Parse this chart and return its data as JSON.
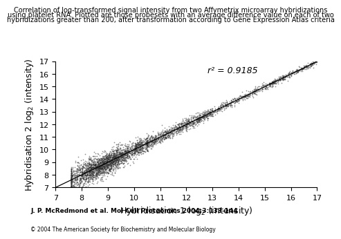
{
  "title_line1": "Correlation of log-transformed signal intensity from two Affymetrix microarray hybridizations",
  "title_line2": "using platelet RNA. Plotted are those probesets with an average difference value on each of two",
  "title_line3": "hybridizations greater than 200, after transformation according to Gene Expression Atlas criteria",
  "xlabel": "Hybridisation 1 log$_2$ (intensity)",
  "ylabel": "Hybridisation 2 log$_2$ (intensity)",
  "xlim": [
    7,
    17
  ],
  "ylim": [
    7,
    17
  ],
  "xticks": [
    7,
    8,
    9,
    10,
    11,
    12,
    13,
    14,
    15,
    16,
    17
  ],
  "yticks": [
    7,
    8,
    9,
    10,
    11,
    12,
    13,
    14,
    15,
    16,
    17
  ],
  "r_squared": "r² = 0.9185",
  "scatter_color": "#333333",
  "scatter_size": 1.5,
  "scatter_alpha": 0.55,
  "line_color": "#000000",
  "n_points": 4000,
  "seed": 42,
  "x_min": 7.6,
  "x_max": 17.0,
  "footnote": "J. P. McRedmond et al. Mol Cell Proteomics 2004;3:133-144",
  "copyright": "© 2004 The American Society for Biochemistry and Molecular Biology",
  "background_color": "#ffffff",
  "title_fontsize": 7.0,
  "axis_label_fontsize": 9,
  "tick_fontsize": 8,
  "annotation_fontsize": 9,
  "footnote_fontsize": 6.5,
  "copyright_fontsize": 5.5
}
